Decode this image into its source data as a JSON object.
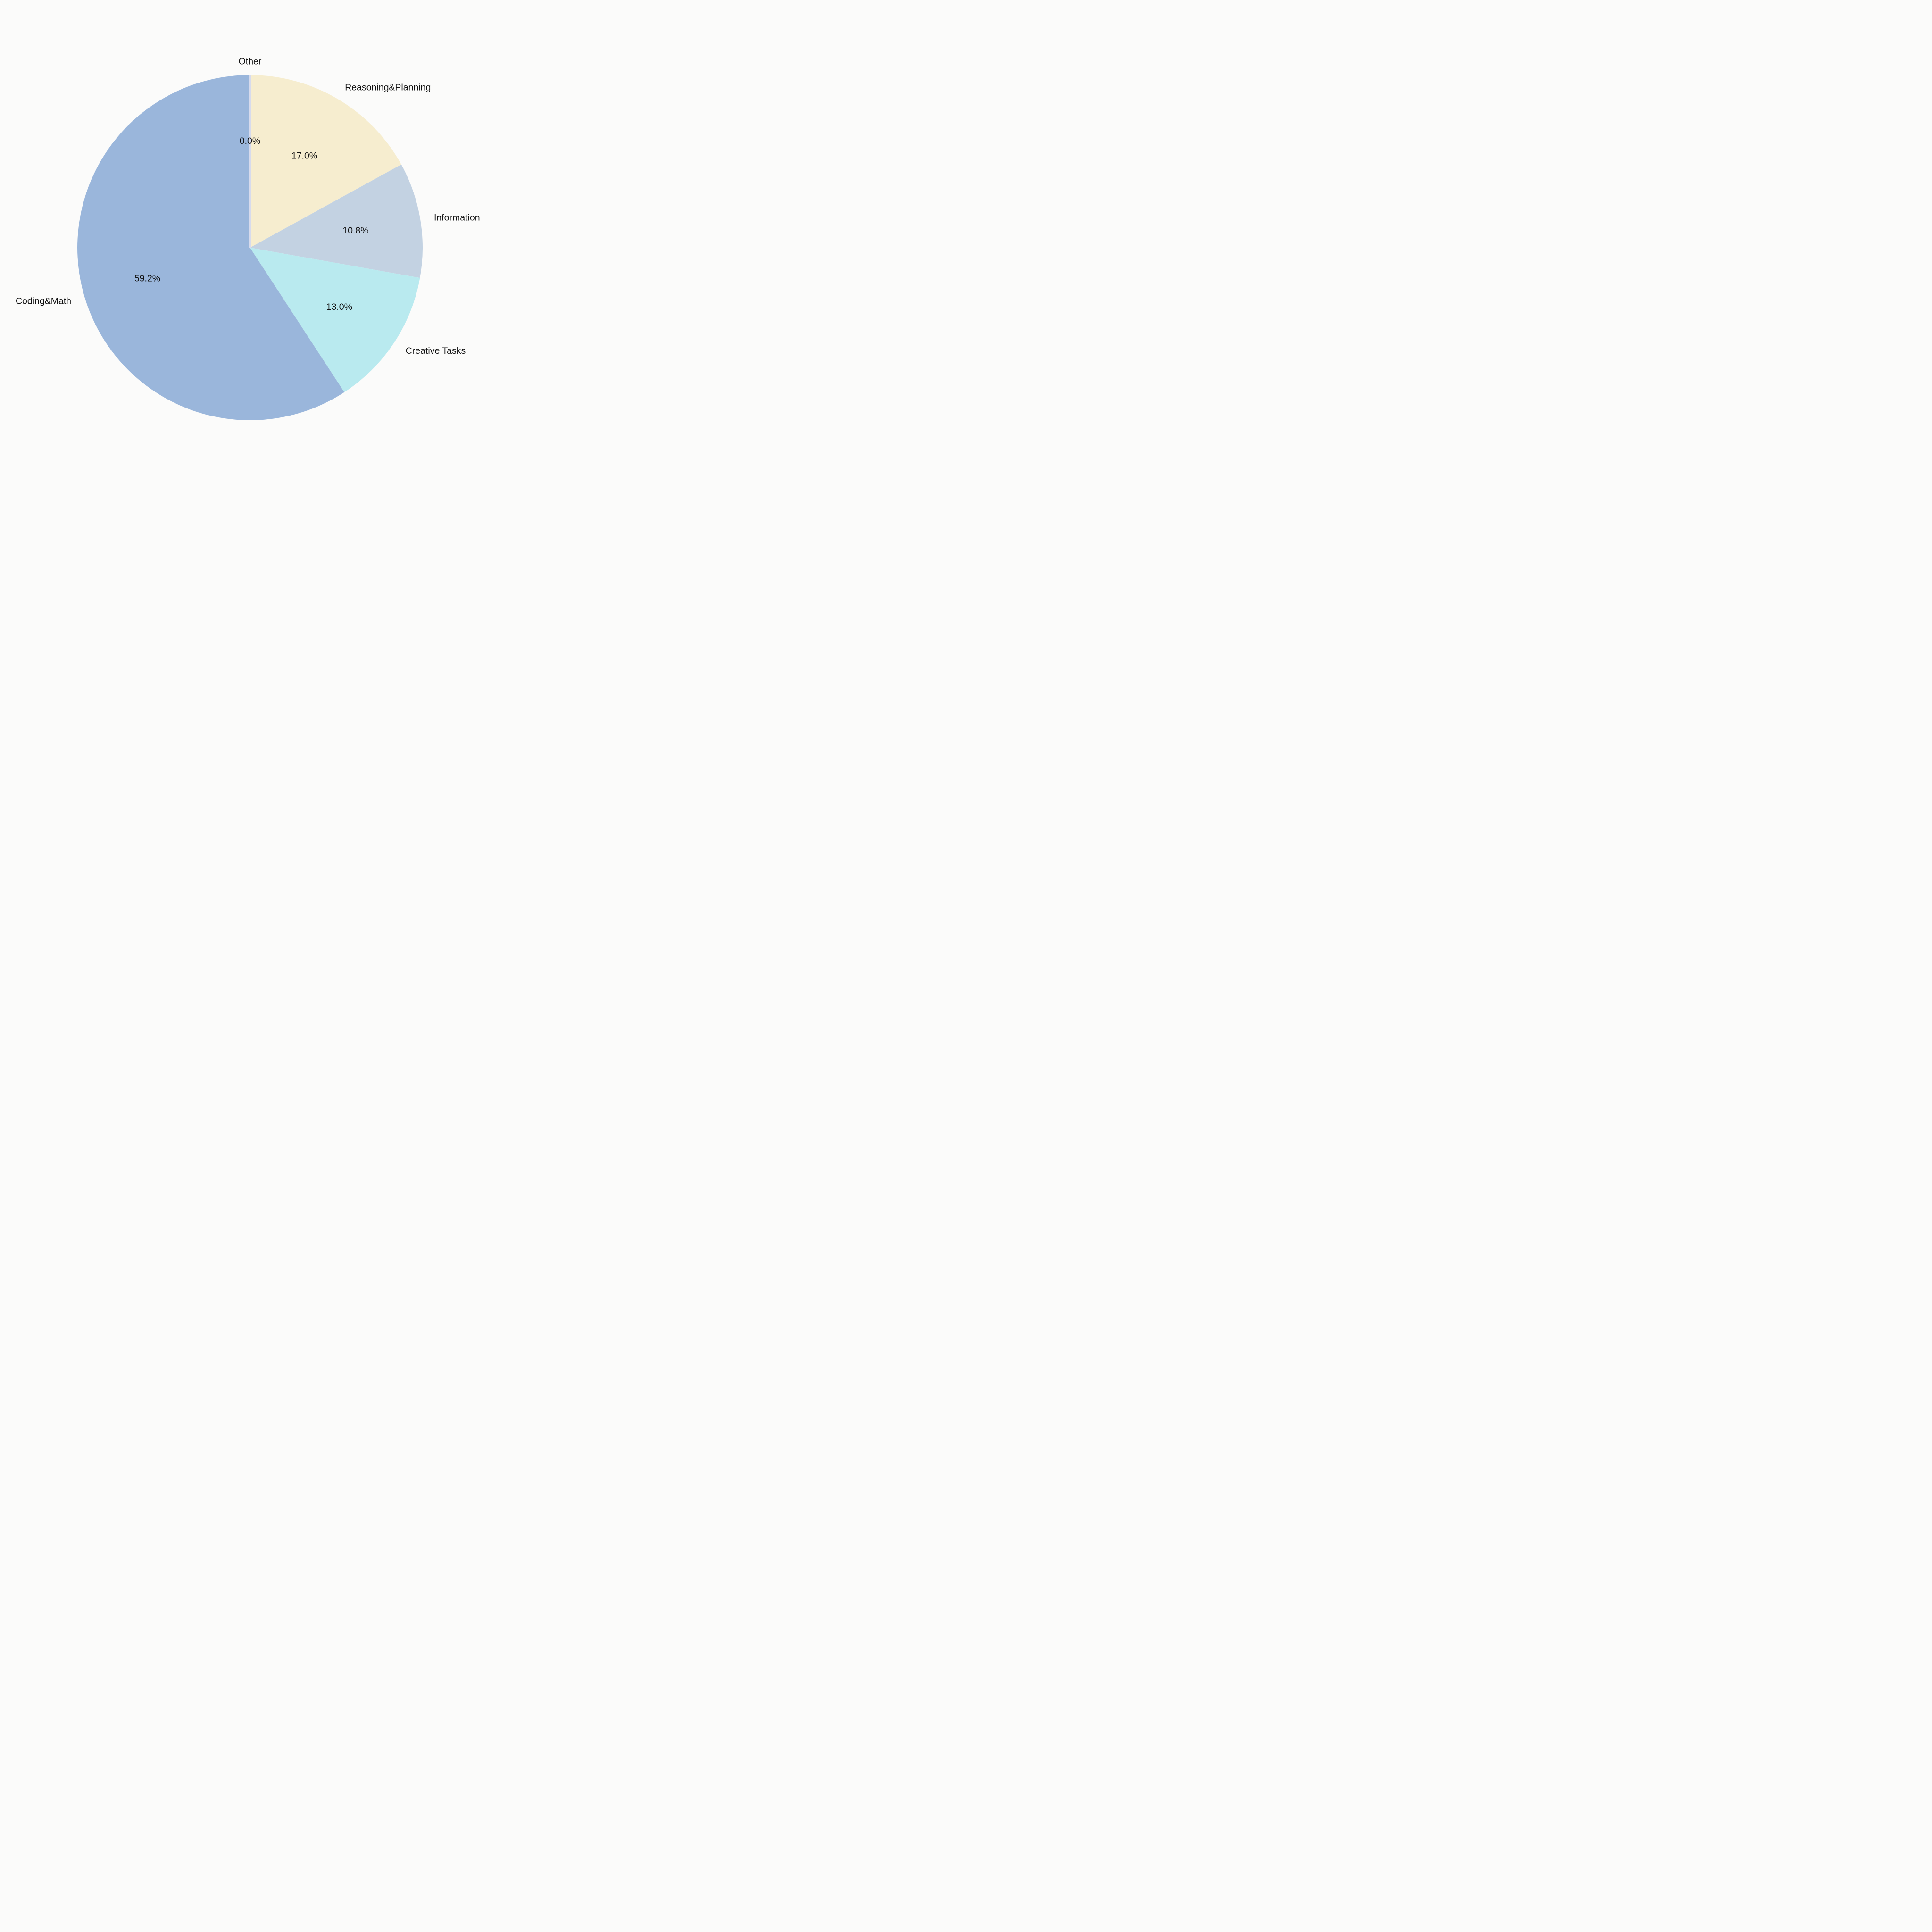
{
  "figure": {
    "background": "#fbfbfa",
    "text_color": "#111111"
  },
  "chart_data": {
    "type": "pie",
    "title": "",
    "categories": [
      "Other",
      "Reasoning&Planning",
      "Information",
      "Creative Tasks",
      "Coding&Math"
    ],
    "values": [
      0.0,
      17.0,
      10.8,
      13.0,
      59.2
    ],
    "pct_labels": [
      "0.0%",
      "17.0%",
      "10.8%",
      "13.0%",
      "59.2%"
    ],
    "colors": [
      "#d7dbed",
      "#f6edcf",
      "#c3d2e2",
      "#b9eaef",
      "#9ab6db"
    ],
    "start_angle": "top",
    "direction": "clockwise",
    "label_distance_ratio": 1.08,
    "pct_distance_ratio": 0.62,
    "legend": false,
    "units": "%"
  }
}
